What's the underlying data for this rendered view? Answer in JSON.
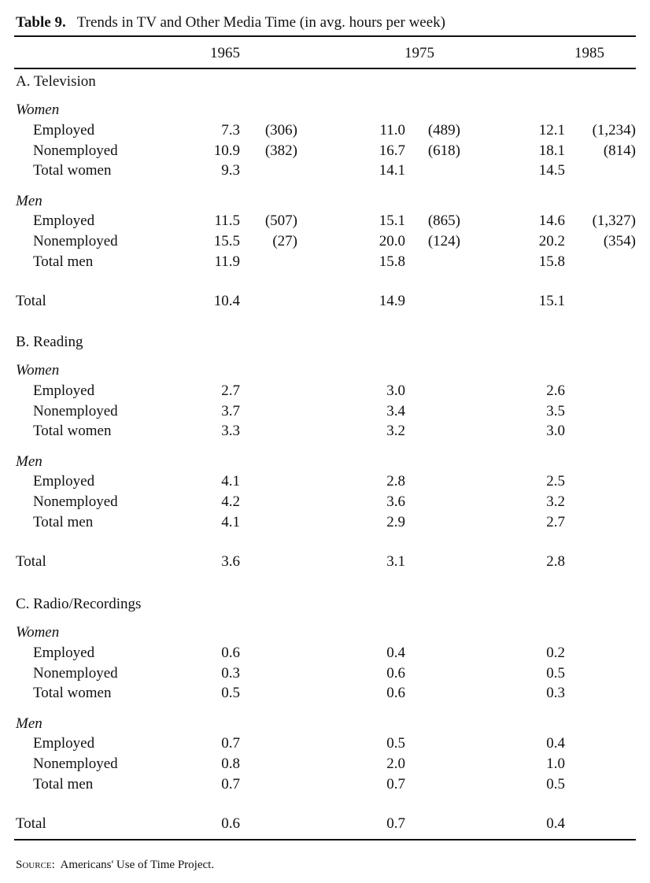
{
  "table": {
    "number": "Table 9.",
    "title": "Trends in TV and Other Media Time (in avg. hours per week)",
    "columns": [
      "1965",
      "1975",
      "1985"
    ],
    "sections": [
      {
        "label": "A. Television",
        "groups": [
          {
            "label": "Women",
            "rows": [
              {
                "label": "Employed",
                "values": [
                  "7.3",
                  "11.0",
                  "12.1"
                ],
                "n": [
                  "(306)",
                  "(489)",
                  "(1,234)"
                ]
              },
              {
                "label": "Nonemployed",
                "values": [
                  "10.9",
                  "16.7",
                  "18.1"
                ],
                "n": [
                  "(382)",
                  "(618)",
                  "(814)"
                ]
              },
              {
                "label": "Total women",
                "values": [
                  "9.3",
                  "14.1",
                  "14.5"
                ]
              }
            ]
          },
          {
            "label": "Men",
            "rows": [
              {
                "label": "Employed",
                "values": [
                  "11.5",
                  "15.1",
                  "14.6"
                ],
                "n": [
                  "(507)",
                  "(865)",
                  "(1,327)"
                ]
              },
              {
                "label": "Nonemployed",
                "values": [
                  "15.5",
                  "20.0",
                  "20.2"
                ],
                "n": [
                  "(27)",
                  "(124)",
                  "(354)"
                ]
              },
              {
                "label": "Total men",
                "values": [
                  "11.9",
                  "15.8",
                  "15.8"
                ]
              }
            ]
          }
        ],
        "total": {
          "label": "Total",
          "values": [
            "10.4",
            "14.9",
            "15.1"
          ]
        }
      },
      {
        "label": "B. Reading",
        "groups": [
          {
            "label": "Women",
            "rows": [
              {
                "label": "Employed",
                "values": [
                  "2.7",
                  "3.0",
                  "2.6"
                ]
              },
              {
                "label": "Nonemployed",
                "values": [
                  "3.7",
                  "3.4",
                  "3.5"
                ]
              },
              {
                "label": "Total women",
                "values": [
                  "3.3",
                  "3.2",
                  "3.0"
                ]
              }
            ]
          },
          {
            "label": "Men",
            "rows": [
              {
                "label": "Employed",
                "values": [
                  "4.1",
                  "2.8",
                  "2.5"
                ]
              },
              {
                "label": "Nonemployed",
                "values": [
                  "4.2",
                  "3.6",
                  "3.2"
                ]
              },
              {
                "label": "Total men",
                "values": [
                  "4.1",
                  "2.9",
                  "2.7"
                ]
              }
            ]
          }
        ],
        "total": {
          "label": "Total",
          "values": [
            "3.6",
            "3.1",
            "2.8"
          ]
        }
      },
      {
        "label": "C. Radio/Recordings",
        "groups": [
          {
            "label": "Women",
            "rows": [
              {
                "label": "Employed",
                "values": [
                  "0.6",
                  "0.4",
                  "0.2"
                ]
              },
              {
                "label": "Nonemployed",
                "values": [
                  "0.3",
                  "0.6",
                  "0.5"
                ]
              },
              {
                "label": "Total women",
                "values": [
                  "0.5",
                  "0.6",
                  "0.3"
                ]
              }
            ]
          },
          {
            "label": "Men",
            "rows": [
              {
                "label": "Employed",
                "values": [
                  "0.7",
                  "0.5",
                  "0.4"
                ]
              },
              {
                "label": "Nonemployed",
                "values": [
                  "0.8",
                  "2.0",
                  "1.0"
                ]
              },
              {
                "label": "Total men",
                "values": [
                  "0.7",
                  "0.7",
                  "0.5"
                ]
              }
            ]
          }
        ],
        "total": {
          "label": "Total",
          "values": [
            "0.6",
            "0.7",
            "0.4"
          ]
        }
      }
    ]
  },
  "source": {
    "label": "Source:",
    "text": "Americans' Use of Time Project."
  }
}
